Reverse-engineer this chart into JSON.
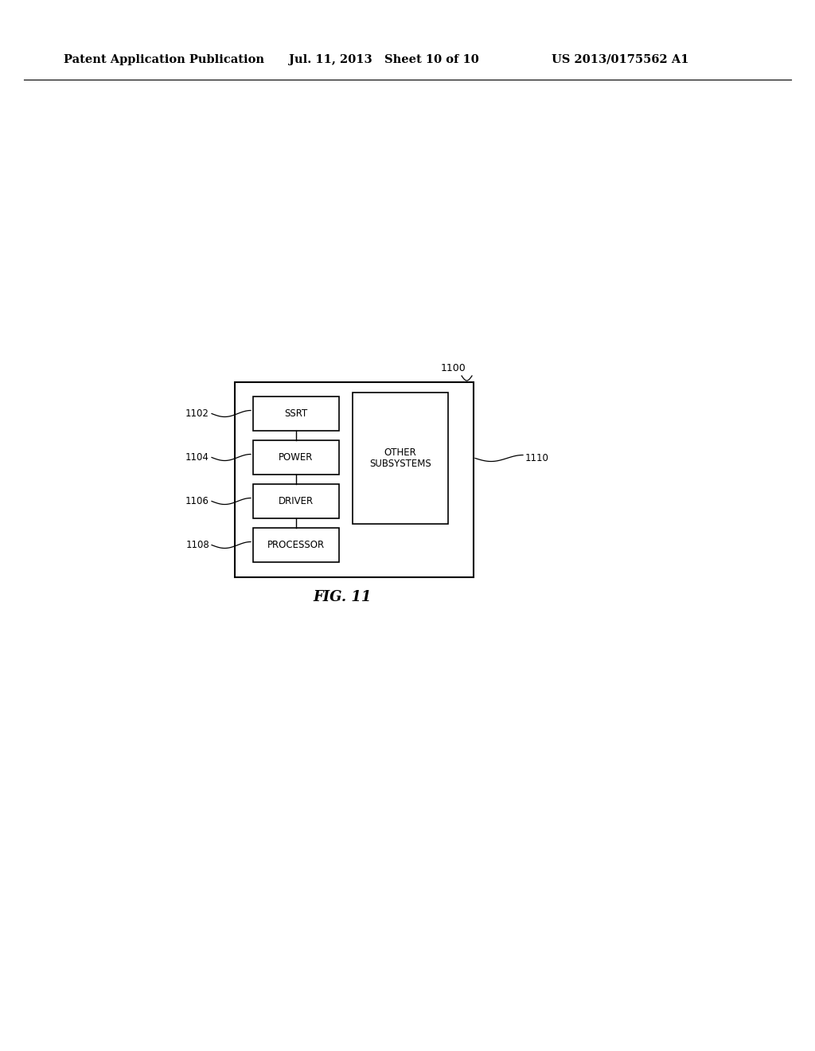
{
  "header_left": "Patent Application Publication",
  "header_mid": "Jul. 11, 2013   Sheet 10 of 10",
  "header_right": "US 2013/0175562 A1",
  "fig_label": "FIG. 11",
  "outer_box_label": "1100",
  "boxes": [
    {
      "label": "SSRT",
      "ref": "1102"
    },
    {
      "label": "POWER",
      "ref": "1104"
    },
    {
      "label": "DRIVER",
      "ref": "1106"
    },
    {
      "label": "PROCESSOR",
      "ref": "1108"
    }
  ],
  "right_box_label": "OTHER\nSUBSYSTEMS",
  "right_box_ref": "1110",
  "line_color": "#000000",
  "bg_color": "#ffffff",
  "text_color": "#000000"
}
